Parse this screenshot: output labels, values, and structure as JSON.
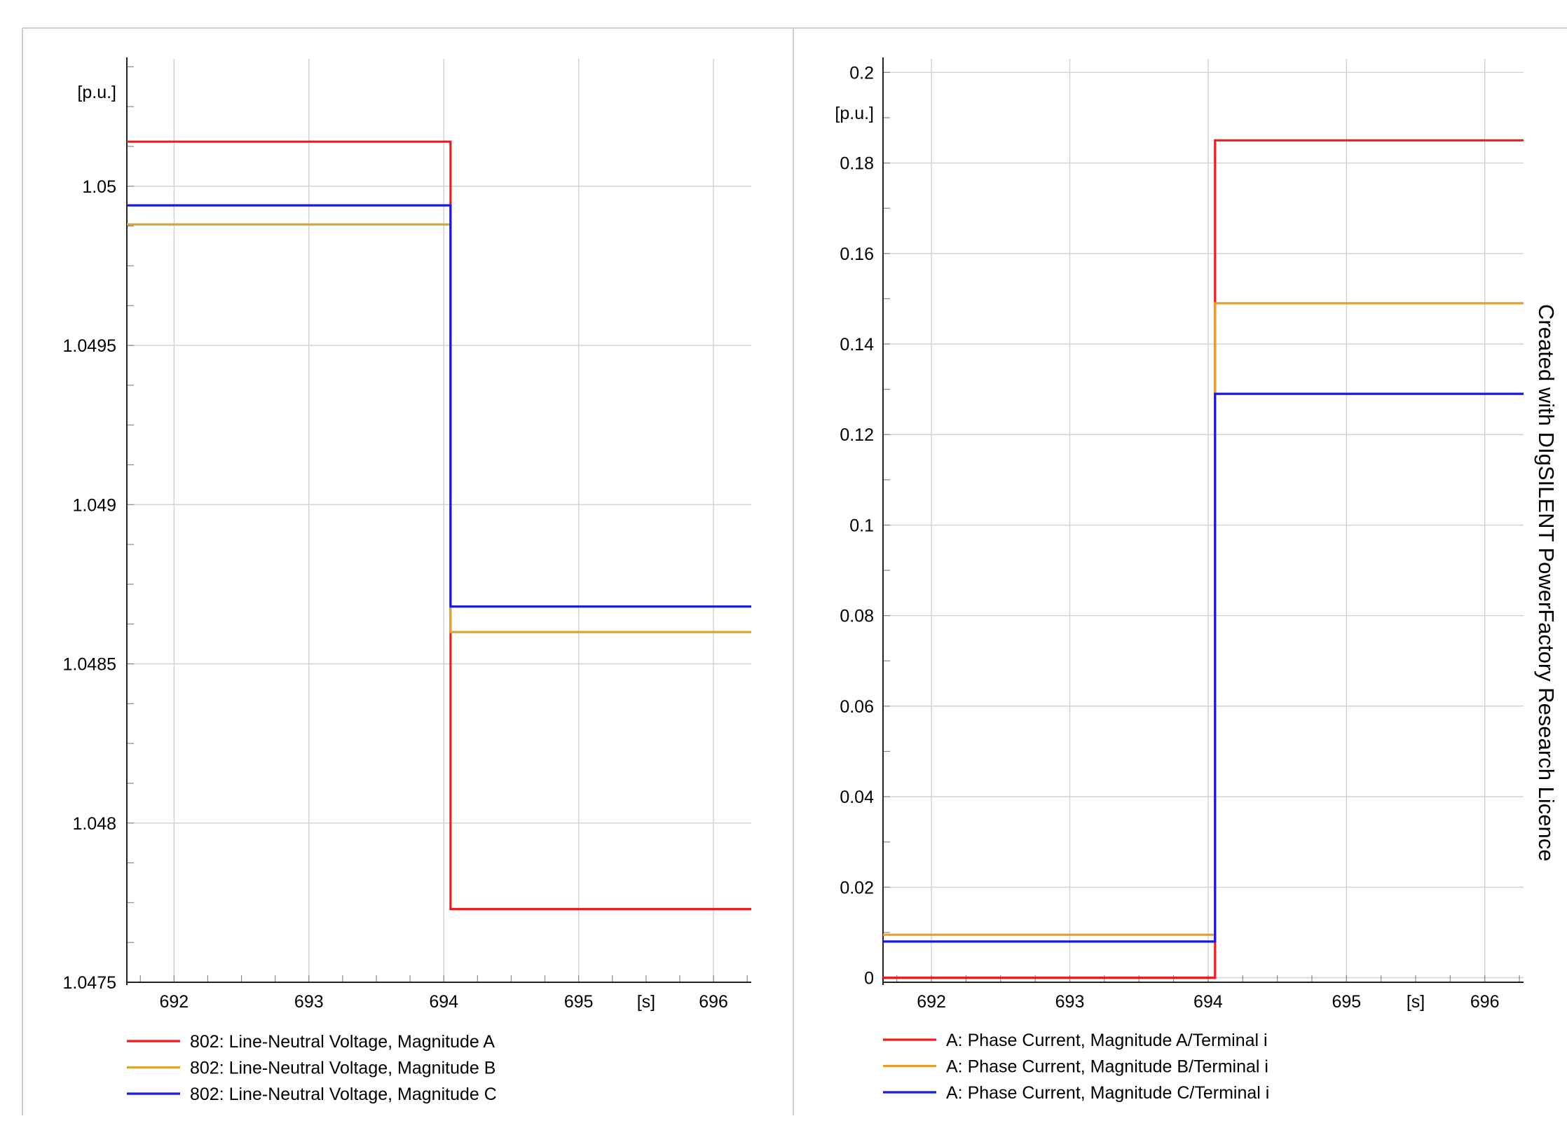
{
  "watermark": "Created with DIgSILENT PowerFactory Research Licence",
  "chart_data": [
    {
      "type": "line",
      "step": true,
      "unit_label": "[p.u.]",
      "x_unit_label": "[s]",
      "xlim": [
        691.65,
        696.28
      ],
      "ylim": [
        1.0475,
        1.0504
      ],
      "x_ticks": [
        692,
        693,
        694,
        695,
        696
      ],
      "x_tick_labels": [
        "692",
        "693",
        "694",
        "695",
        "696"
      ],
      "x_unit_at": 695.5,
      "y_ticks": [
        1.0475,
        1.048,
        1.0485,
        1.049,
        1.0495,
        1.05
      ],
      "y_tick_labels": [
        "1.0475",
        "1.048",
        "1.0485",
        "1.049",
        "1.0495",
        "1.05"
      ],
      "y_minor_step": 0.000125,
      "x_minor_step": 0.25,
      "grid": true,
      "legend_position": "bottom",
      "series": [
        {
          "name": "802: Line-Neutral Voltage, Magnitude A",
          "color": "#ee1c1c",
          "x": [
            691.65,
            694.05,
            694.05,
            696.28
          ],
          "y": [
            1.05014,
            1.05014,
            1.04773,
            1.04773
          ]
        },
        {
          "name": "802: Line-Neutral Voltage, Magnitude B",
          "color": "#e0a12f",
          "x": [
            691.65,
            694.05,
            694.05,
            696.28
          ],
          "y": [
            1.04988,
            1.04988,
            1.0486,
            1.0486
          ]
        },
        {
          "name": "802: Line-Neutral Voltage, Magnitude C",
          "color": "#1717e8",
          "x": [
            691.65,
            694.05,
            694.05,
            696.28
          ],
          "y": [
            1.04994,
            1.04994,
            1.04868,
            1.04868
          ]
        }
      ]
    },
    {
      "type": "line",
      "step": true,
      "unit_label": "[p.u.]",
      "x_unit_label": "[s]",
      "xlim": [
        691.65,
        696.28
      ],
      "ylim": [
        -0.001,
        0.203
      ],
      "x_ticks": [
        692,
        693,
        694,
        695,
        696
      ],
      "x_tick_labels": [
        "692",
        "693",
        "694",
        "695",
        "696"
      ],
      "x_unit_at": 695.5,
      "y_ticks": [
        0,
        0.02,
        0.04,
        0.06,
        0.08,
        0.1,
        0.12,
        0.14,
        0.16,
        0.18,
        0.2
      ],
      "y_tick_labels": [
        "0",
        "0.02",
        "0.04",
        "0.06",
        "0.08",
        "0.1",
        "0.12",
        "0.14",
        "0.16",
        "0.18",
        "0.2"
      ],
      "y_minor_step": 0.01,
      "x_minor_step": 0.25,
      "grid": true,
      "legend_position": "bottom",
      "series": [
        {
          "name": "A: Phase Current, Magnitude A/Terminal i",
          "color": "#ee1c1c",
          "x": [
            691.65,
            694.05,
            694.05,
            696.28
          ],
          "y": [
            0.0,
            0.0,
            0.185,
            0.185
          ]
        },
        {
          "name": "A: Phase Current, Magnitude B/Terminal i",
          "color": "#e0a12f",
          "x": [
            691.65,
            694.05,
            694.05,
            696.28
          ],
          "y": [
            0.0095,
            0.0095,
            0.149,
            0.149
          ]
        },
        {
          "name": "A: Phase Current, Magnitude C/Terminal i",
          "color": "#1717e8",
          "x": [
            691.65,
            694.05,
            694.05,
            696.28
          ],
          "y": [
            0.008,
            0.008,
            0.129,
            0.129
          ]
        }
      ]
    }
  ]
}
